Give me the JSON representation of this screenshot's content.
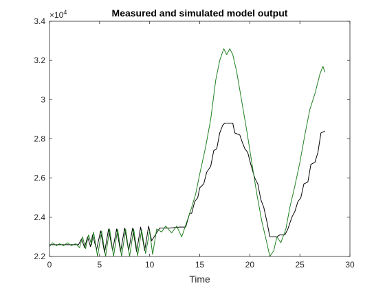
{
  "chart_data": {
    "type": "line",
    "title": "Measured and simulated model output",
    "xlabel": "Time",
    "ylabel": "",
    "xlim": [
      0,
      30
    ],
    "ylim": [
      22000,
      34000
    ],
    "x_ticks": [
      0,
      5,
      10,
      15,
      20,
      25,
      30
    ],
    "y_ticks": [
      22000,
      24000,
      26000,
      28000,
      30000,
      32000,
      34000
    ],
    "x_tick_labels": [
      "0",
      "5",
      "10",
      "15",
      "20",
      "25",
      "30"
    ],
    "y_tick_labels": [
      "2.2",
      "2.4",
      "2.6",
      "2.8",
      "3",
      "3.2",
      "3.4"
    ],
    "y_exponent_label": "×10",
    "y_exponent_power": "4",
    "grid": false,
    "series": [
      {
        "color": "#000000",
        "points": [
          [
            0,
            22600
          ],
          [
            2.9,
            22600
          ],
          [
            3.2,
            22900
          ],
          [
            3.5,
            22450
          ],
          [
            3.8,
            23000
          ],
          [
            4.1,
            22500
          ],
          [
            4.3,
            23100
          ],
          [
            4.7,
            22350
          ],
          [
            5.1,
            23300
          ],
          [
            5.5,
            22200
          ],
          [
            5.9,
            23400
          ],
          [
            6.3,
            22300
          ],
          [
            6.7,
            23400
          ],
          [
            7.1,
            22250
          ],
          [
            7.5,
            23450
          ],
          [
            7.9,
            22300
          ],
          [
            8.3,
            23450
          ],
          [
            8.7,
            22250
          ],
          [
            9.1,
            23500
          ],
          [
            9.5,
            22300
          ],
          [
            9.9,
            23550
          ],
          [
            10.2,
            22800
          ],
          [
            11.0,
            23450
          ],
          [
            12.0,
            23450
          ],
          [
            13.0,
            23500
          ],
          [
            13.6,
            23500
          ],
          [
            14.0,
            24200
          ],
          [
            14.2,
            24200
          ],
          [
            14.5,
            24800
          ],
          [
            14.8,
            25000
          ],
          [
            15.0,
            25500
          ],
          [
            15.4,
            25700
          ],
          [
            15.7,
            26300
          ],
          [
            16.1,
            26600
          ],
          [
            16.4,
            27400
          ],
          [
            16.7,
            27500
          ],
          [
            17.0,
            28300
          ],
          [
            17.3,
            28700
          ],
          [
            17.5,
            28800
          ],
          [
            18.0,
            28800
          ],
          [
            18.3,
            28800
          ],
          [
            18.5,
            28300
          ],
          [
            19.0,
            28200
          ],
          [
            19.2,
            27900
          ],
          [
            19.5,
            27500
          ],
          [
            19.8,
            27300
          ],
          [
            20.1,
            26700
          ],
          [
            20.5,
            26000
          ],
          [
            20.8,
            25700
          ],
          [
            21.1,
            24900
          ],
          [
            21.4,
            24500
          ],
          [
            21.7,
            23800
          ],
          [
            22.0,
            23000
          ],
          [
            22.4,
            23000
          ],
          [
            22.7,
            23000
          ],
          [
            23.0,
            23100
          ],
          [
            23.5,
            23100
          ],
          [
            23.8,
            23400
          ],
          [
            24.2,
            24000
          ],
          [
            24.5,
            24300
          ],
          [
            24.8,
            24800
          ],
          [
            25.1,
            25000
          ],
          [
            25.4,
            25700
          ],
          [
            25.8,
            25800
          ],
          [
            26.1,
            26700
          ],
          [
            26.5,
            26800
          ],
          [
            26.8,
            27300
          ],
          [
            27.1,
            28300
          ],
          [
            27.5,
            28400
          ]
        ]
      },
      {
        "color": "#1f7f1f",
        "points": [
          [
            0,
            22500
          ],
          [
            0.3,
            22700
          ],
          [
            0.7,
            22550
          ],
          [
            1.0,
            22650
          ],
          [
            1.4,
            22550
          ],
          [
            1.8,
            22700
          ],
          [
            2.2,
            22550
          ],
          [
            2.6,
            22650
          ],
          [
            3.0,
            22450
          ],
          [
            3.3,
            23000
          ],
          [
            3.6,
            22400
          ],
          [
            3.9,
            23100
          ],
          [
            4.2,
            22600
          ],
          [
            4.4,
            23250
          ],
          [
            4.8,
            22000
          ],
          [
            5.2,
            23300
          ],
          [
            5.6,
            22000
          ],
          [
            6.0,
            23400
          ],
          [
            6.4,
            22000
          ],
          [
            6.8,
            23400
          ],
          [
            7.2,
            22000
          ],
          [
            7.6,
            23400
          ],
          [
            8.0,
            22000
          ],
          [
            8.4,
            23400
          ],
          [
            8.8,
            22050
          ],
          [
            9.2,
            23350
          ],
          [
            9.6,
            22150
          ],
          [
            10.0,
            23300
          ],
          [
            10.3,
            22100
          ],
          [
            10.7,
            23400
          ],
          [
            11.2,
            23250
          ],
          [
            11.6,
            23550
          ],
          [
            12.2,
            23200
          ],
          [
            12.7,
            23550
          ],
          [
            13.2,
            23000
          ],
          [
            13.6,
            23600
          ],
          [
            14.2,
            24500
          ],
          [
            14.6,
            25200
          ],
          [
            15.0,
            26200
          ],
          [
            15.6,
            27600
          ],
          [
            16.1,
            29000
          ],
          [
            16.6,
            31000
          ],
          [
            17.0,
            32000
          ],
          [
            17.4,
            32600
          ],
          [
            17.7,
            32300
          ],
          [
            18.0,
            32600
          ],
          [
            18.3,
            32300
          ],
          [
            18.7,
            31400
          ],
          [
            19.2,
            29900
          ],
          [
            19.7,
            28400
          ],
          [
            20.2,
            26800
          ],
          [
            20.7,
            25200
          ],
          [
            21.2,
            23800
          ],
          [
            21.7,
            22700
          ],
          [
            22.0,
            22000
          ],
          [
            22.4,
            22300
          ],
          [
            22.7,
            23000
          ],
          [
            23.1,
            22700
          ],
          [
            23.6,
            23400
          ],
          [
            24.0,
            24500
          ],
          [
            24.5,
            25600
          ],
          [
            25.0,
            26800
          ],
          [
            25.5,
            28200
          ],
          [
            26.0,
            29500
          ],
          [
            26.5,
            30300
          ],
          [
            27.0,
            31300
          ],
          [
            27.3,
            31700
          ],
          [
            27.5,
            31400
          ]
        ]
      }
    ]
  }
}
